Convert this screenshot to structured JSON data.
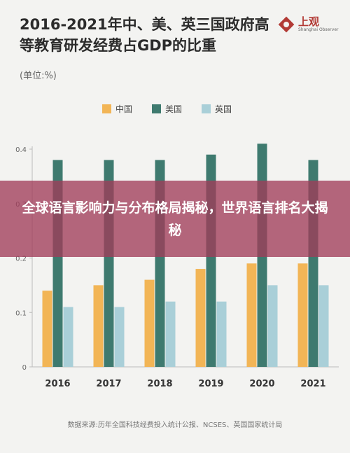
{
  "header": {
    "title": "2016-2021年中、美、英三国政府高等教育研发经费占GDP的比重",
    "unit": "(单位:%)"
  },
  "logo": {
    "name_cn": "上观",
    "name_en": "Shanghai Observer",
    "brand_color": "#b23a35"
  },
  "overlay": {
    "text": "全球语言影响力与分布格局揭秘，世界语言排名大揭秘"
  },
  "footer": {
    "source": "数据来源:历年全国科技经费投入统计公报、NCSES、英国国家统计局"
  },
  "chart_data": {
    "type": "bar",
    "categories": [
      "2016",
      "2017",
      "2018",
      "2019",
      "2020",
      "2021"
    ],
    "series": [
      {
        "name": "中国",
        "color": "#f2b556",
        "values": [
          0.14,
          0.15,
          0.16,
          0.18,
          0.19,
          0.19
        ]
      },
      {
        "name": "美国",
        "color": "#3e7a6f",
        "values": [
          0.38,
          0.38,
          0.38,
          0.39,
          0.41,
          0.38
        ]
      },
      {
        "name": "英国",
        "color": "#a9cfd8",
        "values": [
          0.11,
          0.11,
          0.12,
          0.12,
          0.15,
          0.15
        ]
      }
    ],
    "y_ticks": [
      "0",
      "0.1",
      "0.2",
      "0.3",
      "0.4"
    ],
    "ylim": [
      0,
      0.4
    ],
    "grid": false,
    "legend_position": "top-center"
  }
}
